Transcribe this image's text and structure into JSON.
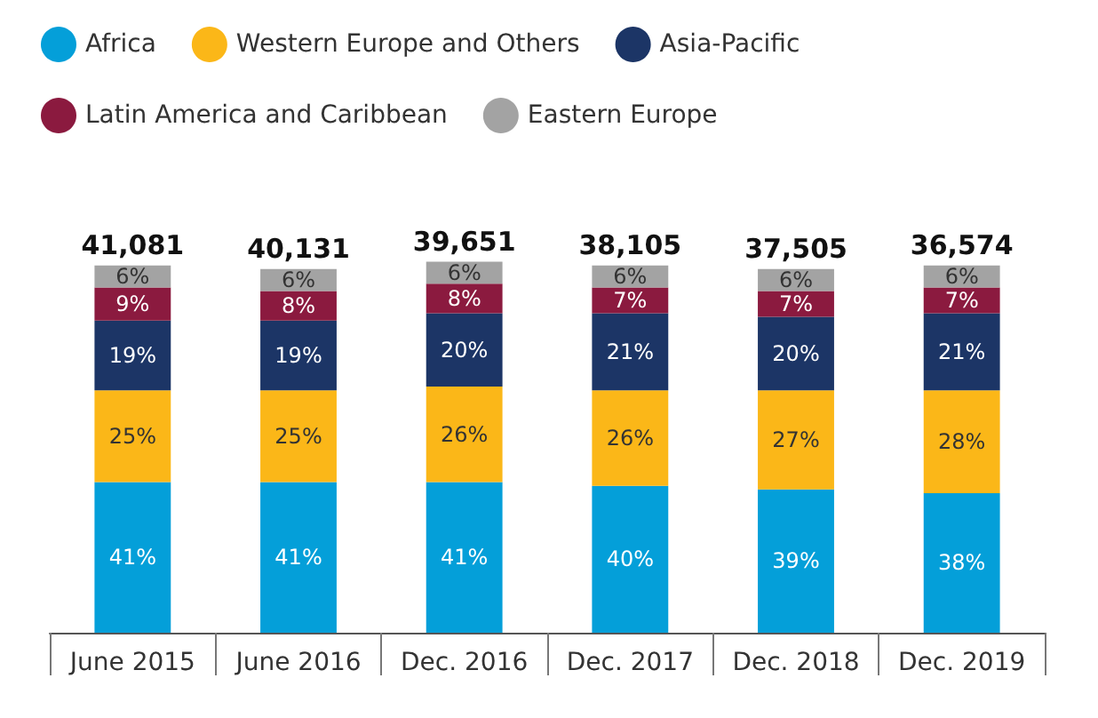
{
  "chart_data": {
    "type": "bar",
    "stacked": true,
    "categories": [
      "June 2015",
      "June 2016",
      "Dec. 2016",
      "Dec. 2017",
      "Dec. 2018",
      "Dec. 2019"
    ],
    "series": [
      {
        "name": "Africa",
        "color": "#049fd9",
        "values": [
          41,
          41,
          41,
          40,
          39,
          38
        ],
        "value_labels": [
          "41%",
          "41%",
          "41%",
          "40%",
          "39%",
          "38%"
        ]
      },
      {
        "name": "Western Europe and Others",
        "color": "#fbb718",
        "values": [
          25,
          25,
          26,
          26,
          27,
          28
        ],
        "value_labels": [
          "25%",
          "25%",
          "26%",
          "26%",
          "27%",
          "28%"
        ]
      },
      {
        "name": "Asia-Pacific",
        "color": "#1c3566",
        "values": [
          19,
          19,
          20,
          21,
          20,
          21
        ],
        "value_labels": [
          "19%",
          "19%",
          "20%",
          "21%",
          "20%",
          "21%"
        ]
      },
      {
        "name": "Latin America and Caribbean",
        "color": "#8b1a3f",
        "values": [
          9,
          8,
          8,
          7,
          7,
          7
        ],
        "value_labels": [
          "9%",
          "8%",
          "8%",
          "7%",
          "7%",
          "7%"
        ]
      },
      {
        "name": "Eastern Europe",
        "color": "#a3a3a3",
        "values": [
          6,
          6,
          6,
          6,
          6,
          6
        ],
        "value_labels": [
          "6%",
          "6%",
          "6%",
          "6%",
          "6%",
          "6%"
        ]
      }
    ],
    "annotations": [
      "41,081",
      "40,131",
      "39,651",
      "38,105",
      "37,505",
      "36,574"
    ],
    "legend": "top"
  }
}
